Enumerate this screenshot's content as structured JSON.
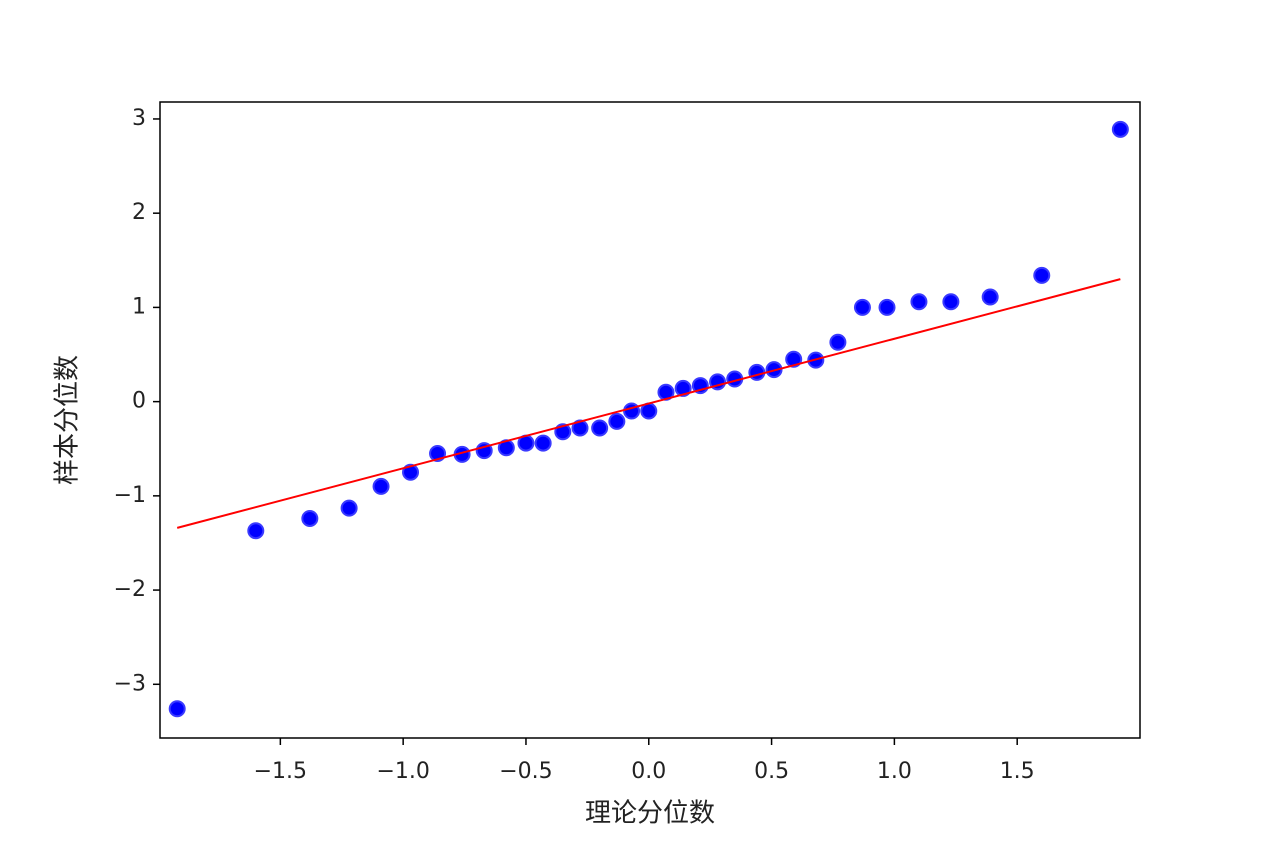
{
  "chart_data": {
    "type": "scatter",
    "x_label": "理论分位数",
    "y_label": "样本分位数",
    "points": {
      "color": "#0000ff",
      "x": [
        -1.92,
        -1.6,
        -1.38,
        -1.22,
        -1.09,
        -0.97,
        -0.86,
        -0.76,
        -0.67,
        -0.58,
        -0.5,
        -0.43,
        -0.35,
        -0.28,
        -0.2,
        -0.13,
        -0.07,
        0.0,
        0.07,
        0.14,
        0.21,
        0.28,
        0.35,
        0.44,
        0.51,
        0.59,
        0.68,
        0.77,
        0.87,
        0.97,
        1.1,
        1.23,
        1.39,
        1.6,
        1.92
      ],
      "y": [
        -3.26,
        -1.37,
        -1.24,
        -1.13,
        -0.9,
        -0.75,
        -0.55,
        -0.56,
        -0.52,
        -0.49,
        -0.44,
        -0.44,
        -0.32,
        -0.28,
        -0.28,
        -0.21,
        -0.1,
        -0.1,
        0.1,
        0.14,
        0.17,
        0.21,
        0.24,
        0.31,
        0.34,
        0.45,
        0.44,
        0.63,
        1.0,
        1.0,
        1.06,
        1.06,
        1.11,
        1.34,
        2.89
      ]
    },
    "fit_line": {
      "color": "#ff0000",
      "x": [
        -1.92,
        1.92
      ],
      "y": [
        -1.34,
        1.3
      ]
    },
    "xlim": [
      -1.99,
      2.0
    ],
    "ylim": [
      -3.57,
      3.18
    ],
    "xticks": [
      {
        "value": -1.5,
        "label": "−1.5"
      },
      {
        "value": -1.0,
        "label": "−1.0"
      },
      {
        "value": -0.5,
        "label": "−0.5"
      },
      {
        "value": 0.0,
        "label": "0.0"
      },
      {
        "value": 0.5,
        "label": "0.5"
      },
      {
        "value": 1.0,
        "label": "1.0"
      },
      {
        "value": 1.5,
        "label": "1.5"
      }
    ],
    "yticks": [
      {
        "value": -3,
        "label": "−3"
      },
      {
        "value": -2,
        "label": "−2"
      },
      {
        "value": -1,
        "label": "−1"
      },
      0,
      1,
      2,
      3
    ],
    "grid": false
  }
}
